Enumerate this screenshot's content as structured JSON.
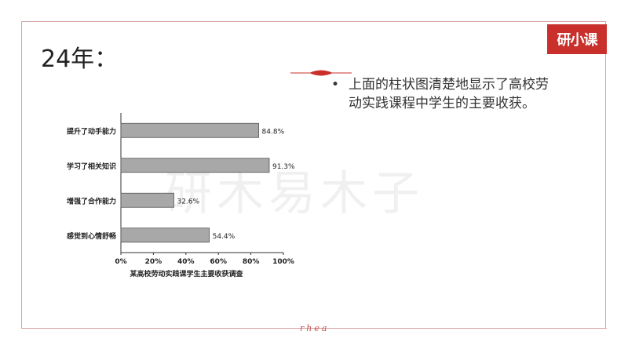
{
  "slide": {
    "title": "24年：",
    "logo_text": "研小课",
    "bullet": "上面的柱状图清楚地显示了高校劳动实践课程中学生的主要收获。",
    "watermark": "研木易木子",
    "footer_brand": "rhea"
  },
  "colors": {
    "accent": "#c9302c",
    "frame": "#d9a2a2",
    "bar": "#a8a8a8"
  },
  "chart_data": {
    "type": "bar",
    "orientation": "horizontal",
    "categories": [
      "提升了动手能力",
      "学习了相关知识",
      "增强了合作能力",
      "感觉到心情舒畅"
    ],
    "values": [
      84.8,
      91.3,
      32.6,
      54.4
    ],
    "value_labels": [
      "84.8%",
      "91.3%",
      "32.6%",
      "54.4%"
    ],
    "xlim": [
      0,
      100
    ],
    "xticks": [
      "0%",
      "20%",
      "40%",
      "60%",
      "80%",
      "100%"
    ],
    "xlabel": "某高校劳动实践课学生主要收获调查",
    "title": ""
  }
}
